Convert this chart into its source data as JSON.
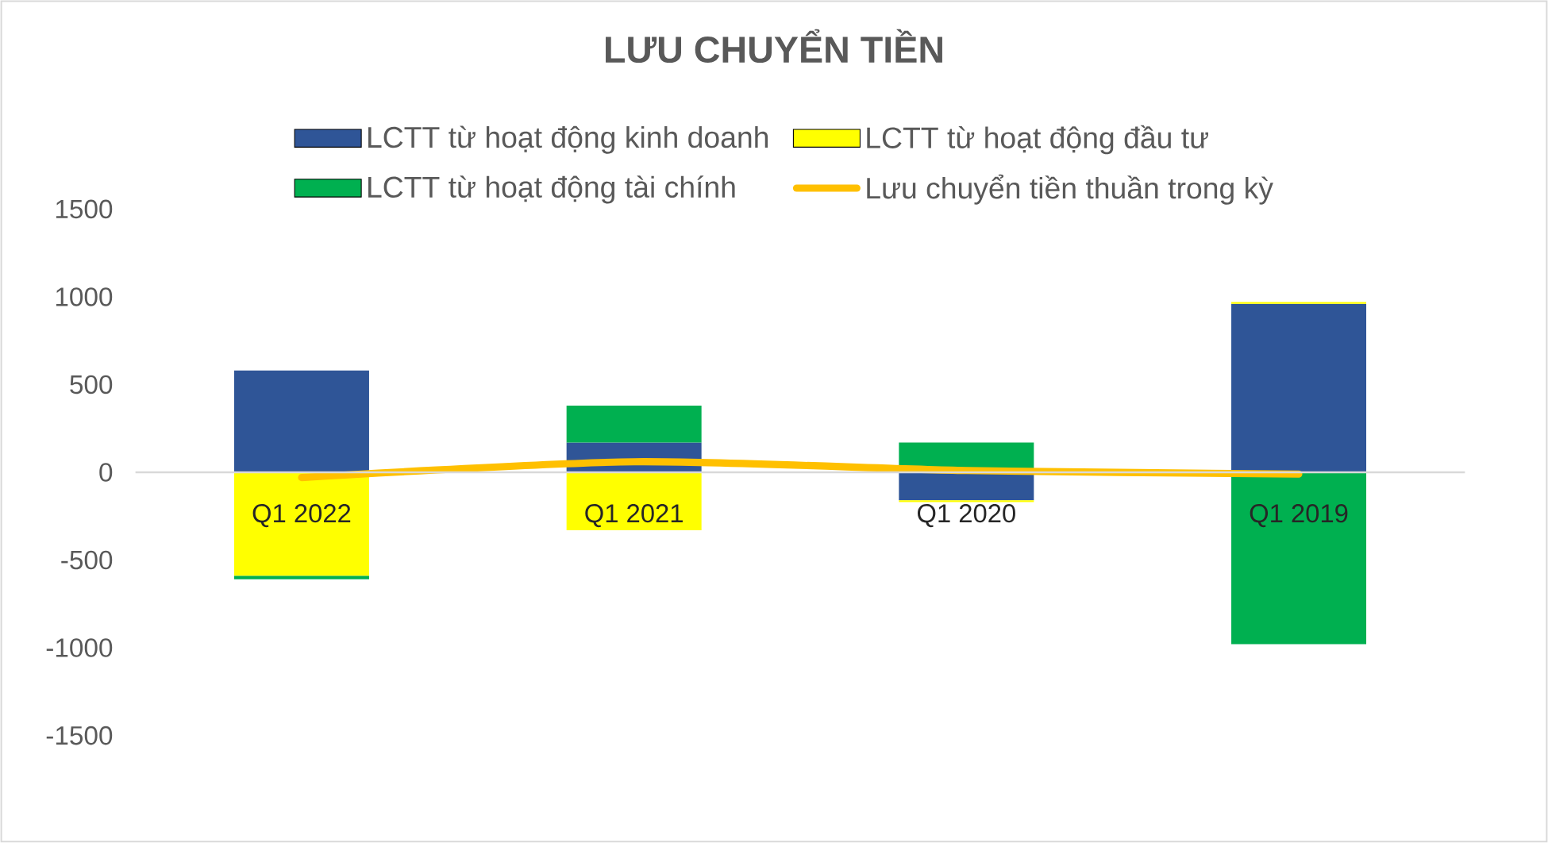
{
  "chart_data": {
    "type": "bar",
    "title": "LƯU CHUYỂN TIỀN",
    "categories": [
      "Q1 2022",
      "Q1 2021",
      "Q1 2020",
      "Q1 2019"
    ],
    "stacked": true,
    "series": [
      {
        "name": "LCTT từ hoạt động kinh doanh",
        "color": "#2f5597",
        "values": [
          580,
          170,
          -160,
          960
        ]
      },
      {
        "name": "LCTT từ hoạt động đầu tư",
        "color": "#ffff00",
        "values": [
          -590,
          -330,
          -10,
          10
        ]
      },
      {
        "name": "LCTT từ hoạt động tài chính",
        "color": "#00b050",
        "values": [
          -20,
          210,
          170,
          -980
        ]
      },
      {
        "name": "Lưu chuyển tiền thuần trong kỳ",
        "type": "line",
        "color": "#ffc000",
        "values": [
          -30,
          60,
          10,
          -10
        ]
      }
    ],
    "ylim": [
      -1500,
      1500
    ],
    "yticks": [
      -1500,
      -1000,
      -500,
      0,
      500,
      1000,
      1500
    ],
    "legend": "top",
    "grid": false
  }
}
